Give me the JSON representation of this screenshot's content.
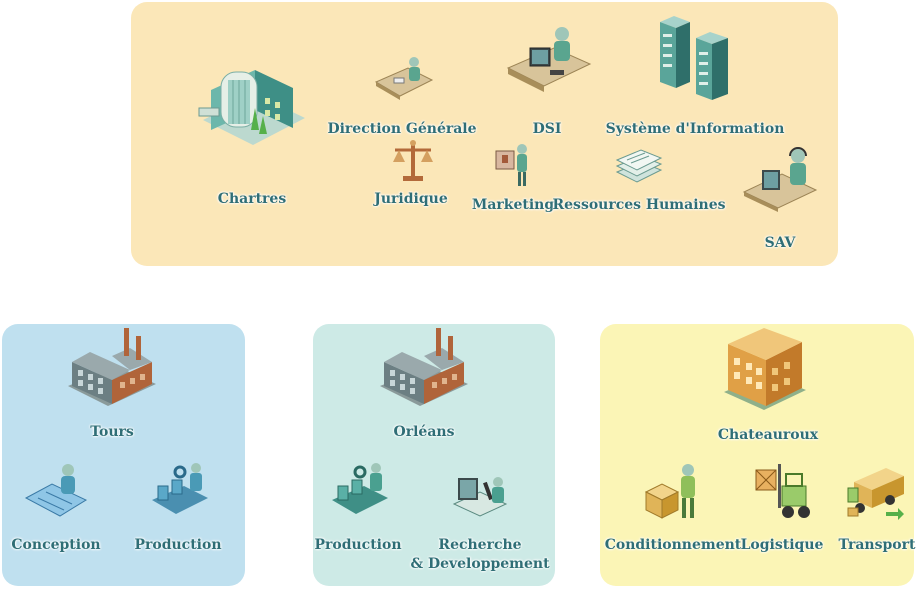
{
  "panels": [
    {
      "name": "Chartres",
      "color": "#fbe7b8"
    },
    {
      "name": "Tours",
      "color": "#bfe0ef"
    },
    {
      "name": "Orléans",
      "color": "#cdeae6"
    },
    {
      "name": "Chateauroux",
      "color": "#fbf5b6"
    }
  ],
  "hq": {
    "site": "Chartres",
    "departments": [
      "Direction Générale",
      "DSI",
      "Système d'Information",
      "Juridique",
      "Marketing",
      "Ressources Humaines",
      "SAV"
    ]
  },
  "tours": {
    "site": "Tours",
    "units": [
      "Conception",
      "Production"
    ]
  },
  "orleans": {
    "site": "Orléans",
    "units": [
      "Production",
      "Recherche",
      "& Developpement"
    ]
  },
  "chateauroux": {
    "site": "Chateauroux",
    "units": [
      "Conditionnement",
      "Logistique",
      "Transport"
    ]
  },
  "icons": [
    "office-building-icon",
    "desk-worker-icon",
    "computer-user-icon",
    "server-rack-icon",
    "scales-icon",
    "presentation-icon",
    "documents-icon",
    "support-headset-icon",
    "factory-icon",
    "drafting-table-icon",
    "assembly-line-icon",
    "microscope-lab-icon",
    "warehouse-building-icon",
    "packaging-worker-icon",
    "forklift-icon",
    "delivery-truck-icon"
  ]
}
